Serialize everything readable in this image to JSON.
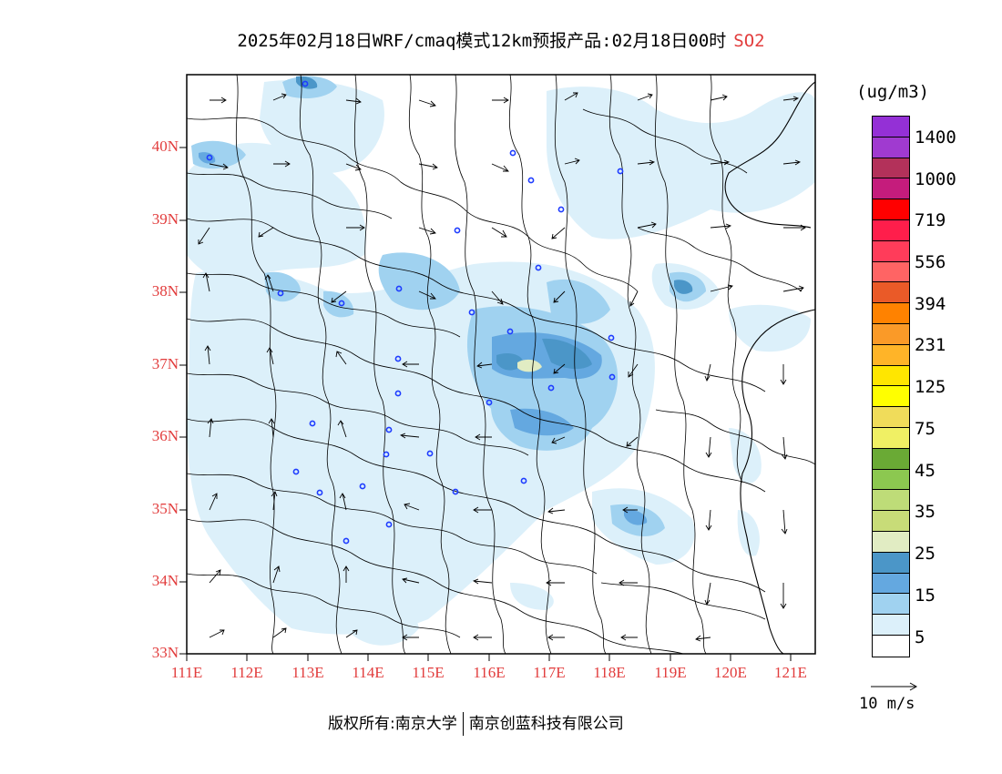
{
  "title": "2025年02月18日WRF/cmaq模式12km预报产品:02月18日00时",
  "pollutant": "SO2",
  "map": {
    "lon_labels": [
      "111E",
      "112E",
      "113E",
      "114E",
      "115E",
      "116E",
      "117E",
      "118E",
      "119E",
      "120E",
      "121E"
    ],
    "lat_labels": [
      "40N",
      "39N",
      "38N",
      "37N",
      "36N",
      "35N",
      "34N",
      "33N"
    ],
    "extent": {
      "lon_min": 111,
      "lon_max": 121.4,
      "lat_min": 33,
      "lat_max": 40.98
    }
  },
  "legend": {
    "unit": "(ug/m3)",
    "labels": [
      "1400",
      "1000",
      "719",
      "556",
      "394",
      "231",
      "125",
      "75",
      "45",
      "35",
      "25",
      "15",
      "5"
    ],
    "colors": [
      "#9430d6",
      "#a03ad0",
      "#b3315a",
      "#c51c7c",
      "#ff0000",
      "#ff1e4b",
      "#ff3c5a",
      "#ff6464",
      "#ea5a28",
      "#ff8200",
      "#fa9a28",
      "#ffb428",
      "#ffe600",
      "#ffff00",
      "#f0dc5a",
      "#f0f064",
      "#6aaa35",
      "#8cc850",
      "#bedc78",
      "#c8dc78",
      "#e1ecc3",
      "#4b96c8",
      "#64a8e0",
      "#a0d2f0",
      "#dcf0fa",
      "#ffffff"
    ]
  },
  "vector_reference": {
    "label": "10 m/s"
  },
  "footer": {
    "left": "版权所有:南京大学",
    "right": "南京创蓝科技有限公司"
  }
}
